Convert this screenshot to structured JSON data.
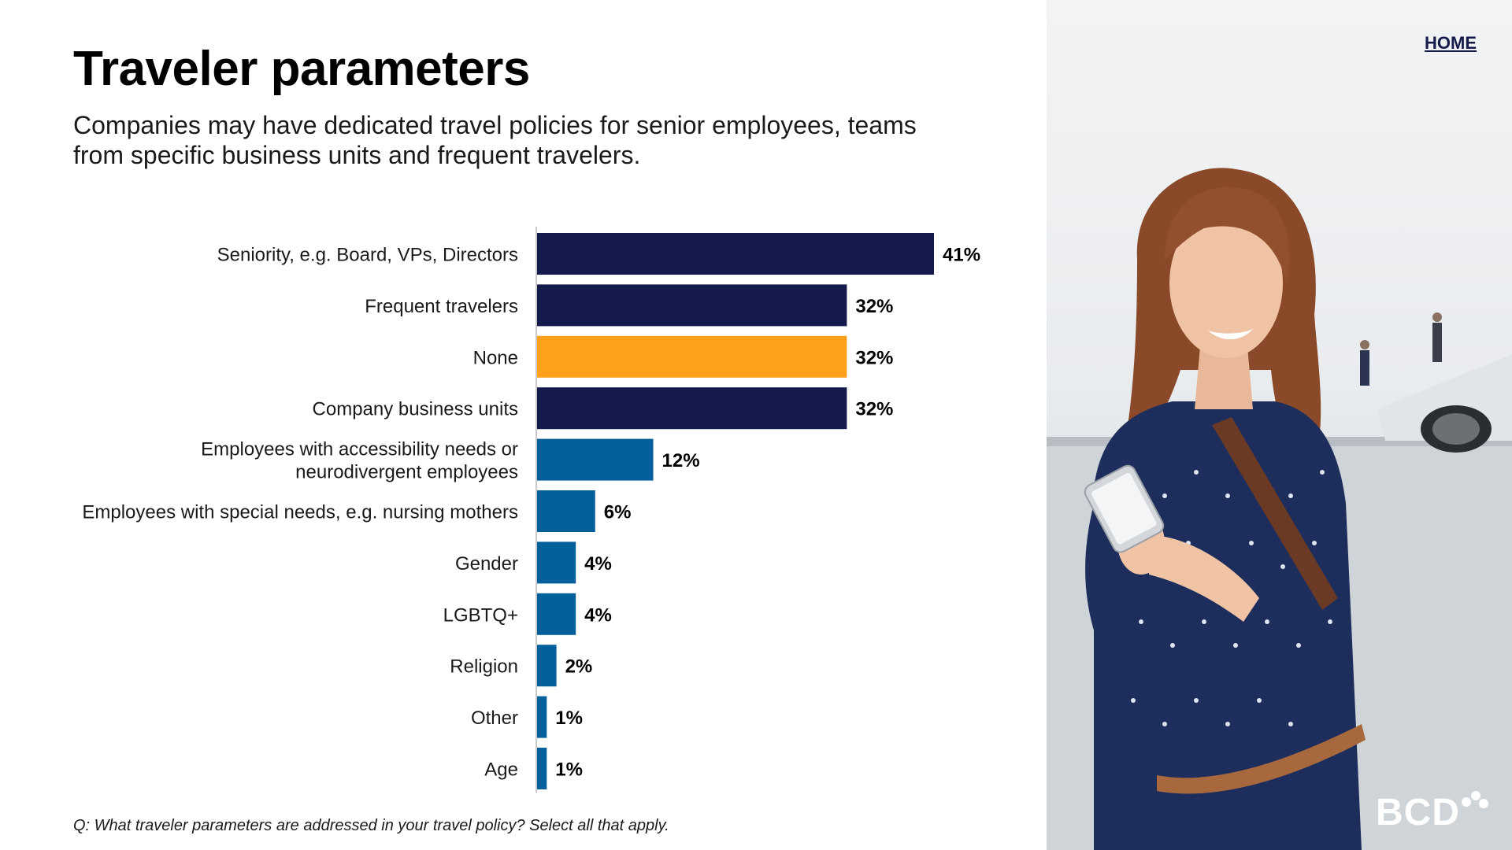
{
  "header": {
    "title": "Traveler parameters",
    "subtitle": "Companies may have dedicated travel policies for senior employees, teams from specific business units and frequent travelers."
  },
  "nav": {
    "home_label": "HOME"
  },
  "brand": {
    "logo_text": "BCD"
  },
  "footnote": "Q: What traveler parameters are addressed in your travel policy? Select all that apply.",
  "colors": {
    "navy": "#151a4d",
    "orange": "#ffa01d",
    "blue": "#04609a",
    "axis": "#c8c8c8"
  },
  "chart_data": {
    "type": "bar",
    "orientation": "horizontal",
    "categories": [
      [
        "Seniority, e.g. Board, VPs, Directors"
      ],
      [
        "Frequent travelers"
      ],
      [
        "None"
      ],
      [
        "Company business units"
      ],
      [
        "Employees with accessibility needs or",
        "neurodivergent employees"
      ],
      [
        "Employees with special needs, e.g. nursing mothers"
      ],
      [
        "Gender"
      ],
      [
        "LGBTQ+"
      ],
      [
        "Religion"
      ],
      [
        "Other"
      ],
      [
        "Age"
      ]
    ],
    "values": [
      41,
      32,
      32,
      32,
      12,
      6,
      4,
      4,
      2,
      1,
      1
    ],
    "value_labels": [
      "41%",
      "32%",
      "32%",
      "32%",
      "12%",
      "6%",
      "4%",
      "4%",
      "2%",
      "1%",
      "1%"
    ],
    "bar_colors": [
      "navy",
      "navy",
      "orange",
      "navy",
      "blue",
      "blue",
      "blue",
      "blue",
      "blue",
      "blue",
      "blue"
    ],
    "xlim": [
      0,
      41
    ],
    "grid": false,
    "legend": false
  }
}
